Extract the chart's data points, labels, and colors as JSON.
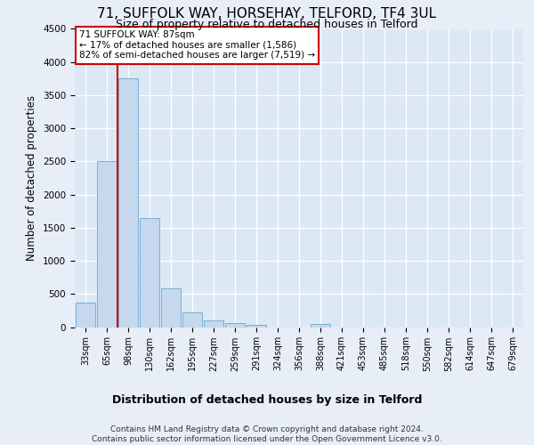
{
  "title": "71, SUFFOLK WAY, HORSEHAY, TELFORD, TF4 3UL",
  "subtitle": "Size of property relative to detached houses in Telford",
  "xlabel": "Distribution of detached houses by size in Telford",
  "ylabel": "Number of detached properties",
  "categories": [
    "33sqm",
    "65sqm",
    "98sqm",
    "130sqm",
    "162sqm",
    "195sqm",
    "227sqm",
    "259sqm",
    "291sqm",
    "324sqm",
    "356sqm",
    "388sqm",
    "421sqm",
    "453sqm",
    "485sqm",
    "518sqm",
    "550sqm",
    "582sqm",
    "614sqm",
    "647sqm",
    "679sqm"
  ],
  "values": [
    370,
    2500,
    3750,
    1650,
    590,
    225,
    105,
    60,
    40,
    0,
    0,
    50,
    0,
    0,
    0,
    0,
    0,
    0,
    0,
    0,
    0
  ],
  "bar_color": "#c5d8ee",
  "bar_edge_color": "#7bafd4",
  "vline_index": 1.5,
  "vline_color": "#cc0000",
  "annotation_line1": "71 SUFFOLK WAY: 87sqm",
  "annotation_line2": "← 17% of detached houses are smaller (1,586)",
  "annotation_line3": "82% of semi-detached houses are larger (7,519) →",
  "annotation_box_facecolor": "white",
  "annotation_box_edgecolor": "#cc0000",
  "ylim_max": 4500,
  "yticks": [
    0,
    500,
    1000,
    1500,
    2000,
    2500,
    3000,
    3500,
    4000,
    4500
  ],
  "fig_bg_color": "#e8eef8",
  "axes_bg_color": "#dce8f4",
  "grid_color": "white",
  "footer_line1": "Contains HM Land Registry data © Crown copyright and database right 2024.",
  "footer_line2": "Contains public sector information licensed under the Open Government Licence v3.0.",
  "title_fontsize": 11,
  "subtitle_fontsize": 9,
  "ylabel_fontsize": 8.5,
  "xlabel_fontsize": 9,
  "tick_fontsize": 7,
  "annot_fontsize": 7.5,
  "footer_fontsize": 6.5
}
